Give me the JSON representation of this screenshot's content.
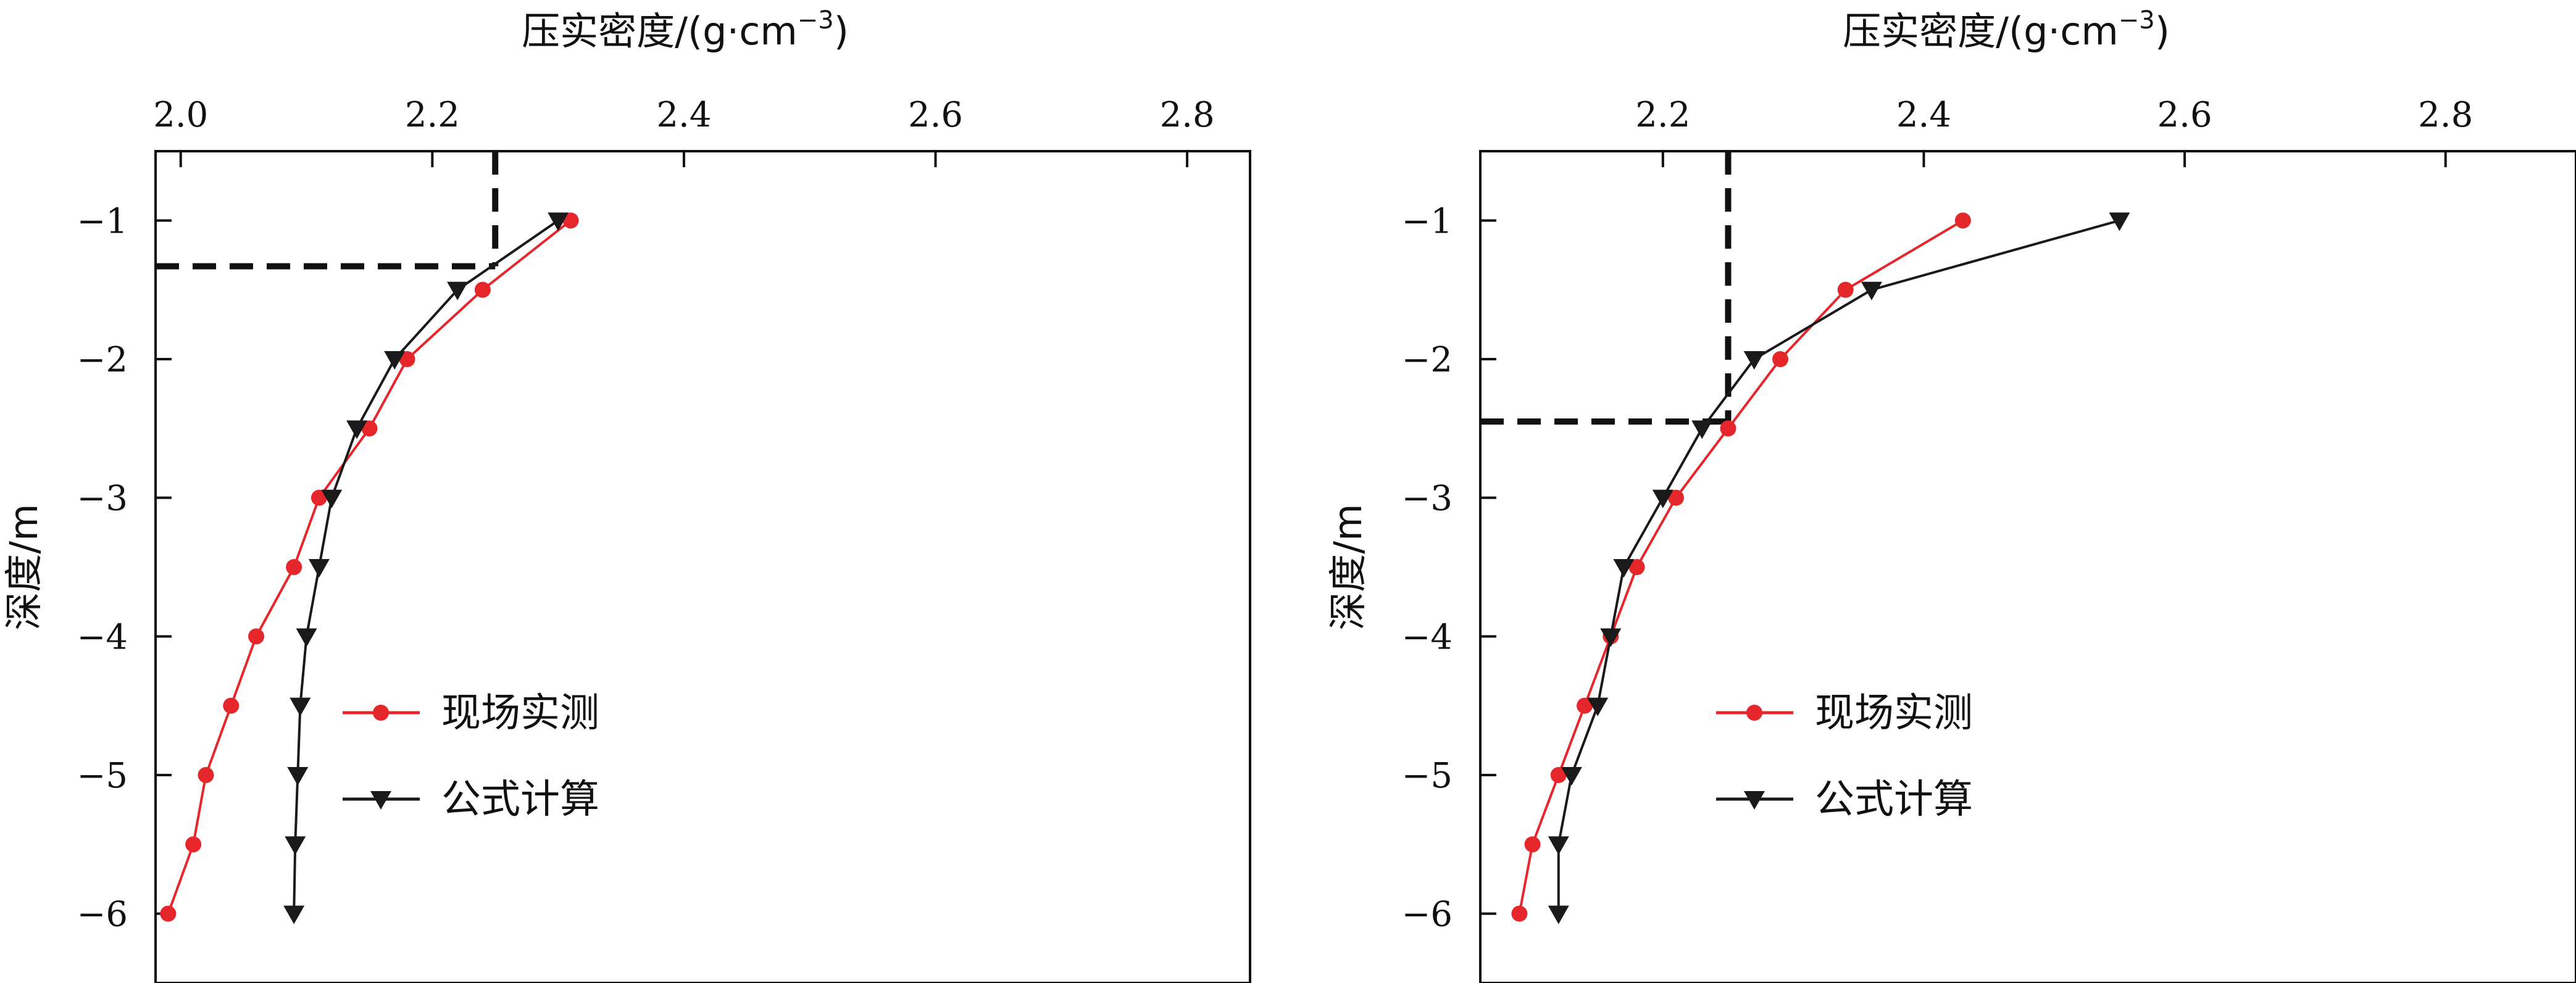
{
  "chart_data": [
    {
      "type": "line",
      "xlabel": "压实密度/(g·cm",
      "xlabel_sup": "−3",
      "xlabel_close": ")",
      "ylabel": "深度/m",
      "xlim": [
        1.98,
        2.85
      ],
      "ylim": [
        -6.5,
        -0.5
      ],
      "xaxis_position": "top",
      "x_ticks": [
        2.0,
        2.2,
        2.4,
        2.6,
        2.8
      ],
      "x_tick_labels": [
        "2.0",
        "2.2",
        "2.4",
        "2.6",
        "2.8"
      ],
      "y_ticks": [
        -1,
        -2,
        -3,
        -4,
        -5,
        -6
      ],
      "y_tick_labels": [
        "−1",
        "−2",
        "−3",
        "−4",
        "−5",
        "−6"
      ],
      "grid": false,
      "legend_placement": "center-left",
      "colors": {
        "measured": "#e5262b",
        "calculated": "#1a1a1a"
      },
      "series": [
        {
          "name": "现场实测",
          "marker": "circle",
          "x": [
            2.31,
            2.24,
            2.18,
            2.15,
            2.11,
            2.09,
            2.06,
            2.04,
            2.02,
            2.01,
            1.99
          ],
          "y": [
            -1.0,
            -1.5,
            -2.0,
            -2.5,
            -3.0,
            -3.5,
            -4.0,
            -4.5,
            -5.0,
            -5.5,
            -6.0
          ]
        },
        {
          "name": "公式计算",
          "marker": "triangle-down",
          "x": [
            2.3,
            2.22,
            2.17,
            2.14,
            2.12,
            2.11,
            2.1,
            2.095,
            2.093,
            2.091,
            2.09
          ],
          "y": [
            -1.0,
            -1.5,
            -2.0,
            -2.5,
            -3.0,
            -3.5,
            -4.0,
            -4.5,
            -5.0,
            -5.5,
            -6.0
          ]
        }
      ],
      "reference_lines": {
        "x": 2.25,
        "y": -1.33
      }
    },
    {
      "type": "line",
      "xlabel": "压实密度/(g·cm",
      "xlabel_sup": "−3",
      "xlabel_close": ")",
      "ylabel": "深度/m",
      "xlim": [
        2.06,
        2.9
      ],
      "ylim": [
        -6.5,
        -0.5
      ],
      "xaxis_position": "top",
      "x_ticks": [
        2.2,
        2.4,
        2.6,
        2.8
      ],
      "x_tick_labels": [
        "2.2",
        "2.4",
        "2.6",
        "2.8"
      ],
      "y_ticks": [
        -1,
        -2,
        -3,
        -4,
        -5,
        -6
      ],
      "y_tick_labels": [
        "−1",
        "−2",
        "−3",
        "−4",
        "−5",
        "−6"
      ],
      "grid": false,
      "legend_placement": "center",
      "colors": {
        "measured": "#e5262b",
        "calculated": "#1a1a1a"
      },
      "series": [
        {
          "name": "现场实测",
          "marker": "circle",
          "x": [
            2.43,
            2.34,
            2.29,
            2.25,
            2.21,
            2.18,
            2.16,
            2.14,
            2.12,
            2.1,
            2.09
          ],
          "y": [
            -1.0,
            -1.5,
            -2.0,
            -2.5,
            -3.0,
            -3.5,
            -4.0,
            -4.5,
            -5.0,
            -5.5,
            -6.0
          ]
        },
        {
          "name": "公式计算",
          "marker": "triangle-down",
          "x": [
            2.55,
            2.36,
            2.27,
            2.23,
            2.2,
            2.17,
            2.16,
            2.15,
            2.13,
            2.12,
            2.12
          ],
          "y": [
            -1.0,
            -1.5,
            -2.0,
            -2.5,
            -3.0,
            -3.5,
            -4.0,
            -4.5,
            -5.0,
            -5.5,
            -6.0
          ]
        }
      ],
      "reference_lines": {
        "x": 2.25,
        "y": -2.45
      }
    }
  ]
}
